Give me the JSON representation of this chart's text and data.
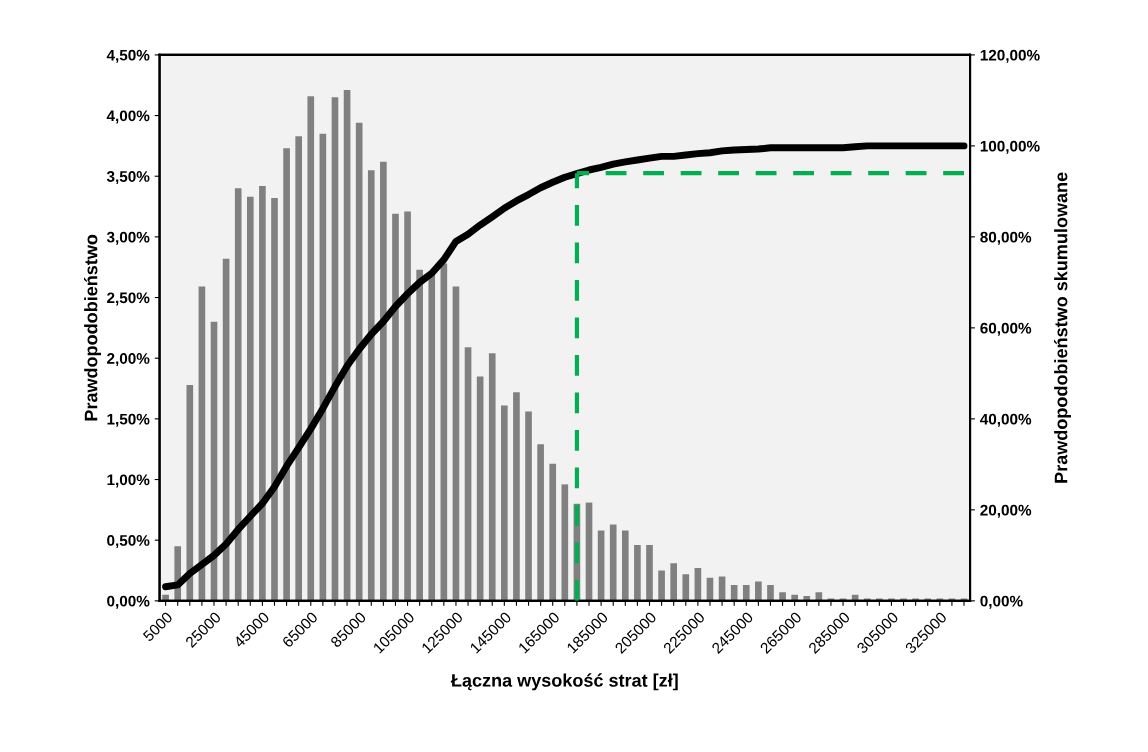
{
  "chart_data": {
    "type": "bar",
    "xlabel": "Łączna wysokość strat [zł]",
    "ylabel": "Prawdopodobieństwo",
    "y2label": "Prawdopodobieństwo skumulowane",
    "categories": [
      "5000",
      null,
      null,
      null,
      "25000",
      null,
      null,
      null,
      "45000",
      null,
      null,
      null,
      "65000",
      null,
      null,
      null,
      "85000",
      null,
      null,
      null,
      "105000",
      null,
      null,
      null,
      "125000",
      null,
      null,
      null,
      "145000",
      null,
      null,
      null,
      "165000",
      null,
      null,
      null,
      "185000",
      null,
      null,
      null,
      "205000",
      null,
      null,
      null,
      "225000",
      null,
      null,
      null,
      "245000",
      null,
      null,
      null,
      "265000",
      null,
      null,
      null,
      "285000",
      null,
      null,
      null,
      "305000",
      null,
      null,
      null,
      "325000",
      null,
      null
    ],
    "series": [
      {
        "color": "#808080",
        "values": [
          0.05,
          0.45,
          1.78,
          2.59,
          2.3,
          2.82,
          3.4,
          3.33,
          3.42,
          3.32,
          3.73,
          3.83,
          4.16,
          3.85,
          4.15,
          4.21,
          3.94,
          3.55,
          3.62,
          3.19,
          3.21,
          2.73,
          2.71,
          2.78,
          2.59,
          2.09,
          1.85,
          2.04,
          1.61,
          1.72,
          1.56,
          1.29,
          1.13,
          0.96,
          0.8,
          0.81,
          0.58,
          0.63,
          0.58,
          0.46,
          0.46,
          0.25,
          0.31,
          0.22,
          0.27,
          0.19,
          0.2,
          0.13,
          0.13,
          0.16,
          0.13,
          0.07,
          0.05,
          0.04,
          0.07,
          0.02,
          0.02,
          0.05,
          0.02,
          0.02,
          0.02,
          0.02,
          0.02,
          0.02,
          0.02,
          0.02,
          0.02
        ]
      },
      {
        "type": "line",
        "axis": "y2",
        "color": "#000000",
        "line_style": "solid",
        "values": [
          3.1,
          3.5,
          6.0,
          8.0,
          10.0,
          12.5,
          15.7,
          18.6,
          21.4,
          25.1,
          29.6,
          33.7,
          37.8,
          42.3,
          47.1,
          51.6,
          55.3,
          58.6,
          61.4,
          64.7,
          67.5,
          70.0,
          72.0,
          75.0,
          79.0,
          80.6,
          82.6,
          84.4,
          86.3,
          87.9,
          89.3,
          90.8,
          92.0,
          93.1,
          93.9,
          94.7,
          95.3,
          96.0,
          96.5,
          96.9,
          97.3,
          97.7,
          97.7,
          98.0,
          98.3,
          98.5,
          98.9,
          99.1,
          99.2,
          99.3,
          99.6,
          99.6,
          99.6,
          99.6,
          99.6,
          99.6,
          99.6,
          99.8,
          100,
          100,
          100,
          100,
          100,
          100,
          100,
          100,
          100
        ]
      },
      {
        "type": "line",
        "axis": "y2",
        "color": "#00b050",
        "line_style": "dashed",
        "values": [
          null,
          null,
          null,
          null,
          null,
          null,
          null,
          null,
          null,
          null,
          null,
          null,
          null,
          null,
          null,
          null,
          null,
          null,
          null,
          null,
          null,
          null,
          null,
          null,
          null,
          null,
          null,
          null,
          null,
          null,
          null,
          null,
          null,
          null,
          94,
          94,
          94,
          94,
          94,
          94,
          94,
          94,
          94,
          94,
          94,
          94,
          94,
          94,
          94,
          94,
          94,
          94,
          94,
          94,
          94,
          94,
          94,
          94,
          94,
          94,
          94,
          94,
          94,
          94,
          94,
          94,
          94
        ]
      }
    ],
    "ylim": [
      0,
      4.5
    ],
    "yticks": [
      {
        "value": 0,
        "label": "0,00%"
      },
      {
        "value": 0.5,
        "label": "0,50%"
      },
      {
        "value": 1,
        "label": "1,00%"
      },
      {
        "value": 1.5,
        "label": "1,50%"
      },
      {
        "value": 2,
        "label": "2,00%"
      },
      {
        "value": 2.5,
        "label": "2,50%"
      },
      {
        "value": 3,
        "label": "3,00%"
      },
      {
        "value": 3.5,
        "label": "3,50%"
      },
      {
        "value": 4,
        "label": "4,00%"
      },
      {
        "value": 4.5,
        "label": "4,50%"
      }
    ],
    "y2lim": [
      0,
      120
    ],
    "y2ticks": [
      {
        "value": 0,
        "label": "0,00%"
      },
      {
        "value": 20,
        "label": "20,00%"
      },
      {
        "value": 40,
        "label": "40,00%"
      },
      {
        "value": 60,
        "label": "60,00%"
      },
      {
        "value": 80,
        "label": "80,00%"
      },
      {
        "value": 100,
        "label": "100,00%"
      },
      {
        "value": 120,
        "label": "120,00%"
      }
    ],
    "grid": false,
    "legend": false
  }
}
